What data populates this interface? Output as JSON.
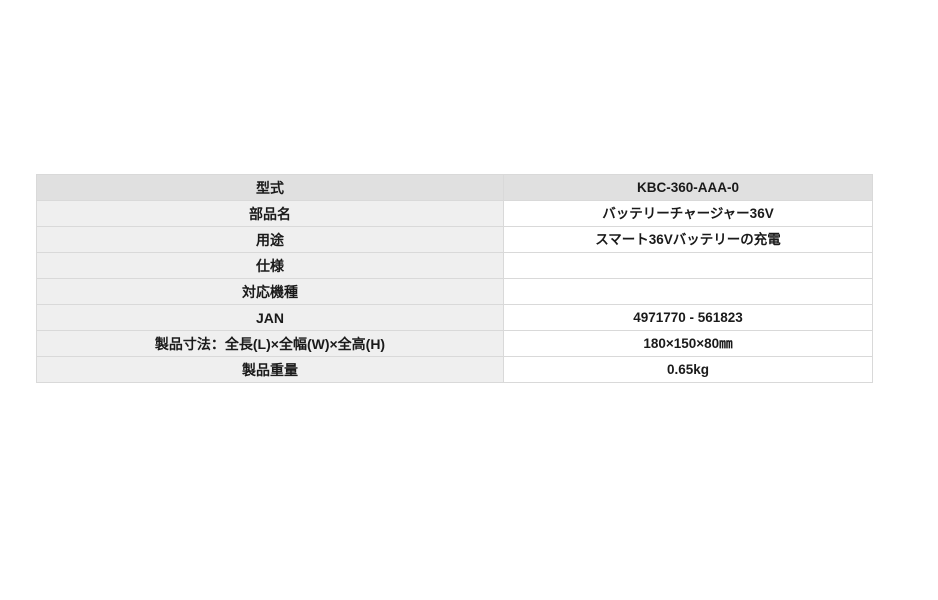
{
  "table": {
    "name": "product-specification-table",
    "columns": {
      "label": "spec-name",
      "value": "spec-value"
    },
    "rows": [
      {
        "label": "型式",
        "value": "KBC-360-AAA-0"
      },
      {
        "label": "部品名",
        "value": "バッテリーチャージャー36V"
      },
      {
        "label": "用途",
        "value": "スマート36Vバッテリーの充電"
      },
      {
        "label": "仕様",
        "value": ""
      },
      {
        "label": "対応機種",
        "value": ""
      },
      {
        "label": "JAN",
        "value": "4971770 - 561823"
      },
      {
        "label": "製品寸法：全長(L)×全幅(W)×全高(H)",
        "value": "180×150×80㎜"
      },
      {
        "label": "製品重量",
        "value": "0.65kg"
      }
    ],
    "colors": {
      "header_row_bg": "#e0e0e0",
      "label_cell_bg": "#efefef",
      "value_cell_bg": "#ffffff",
      "border": "#d9d9d9",
      "text": "#1a1a1a",
      "page_bg": "#ffffff"
    }
  }
}
